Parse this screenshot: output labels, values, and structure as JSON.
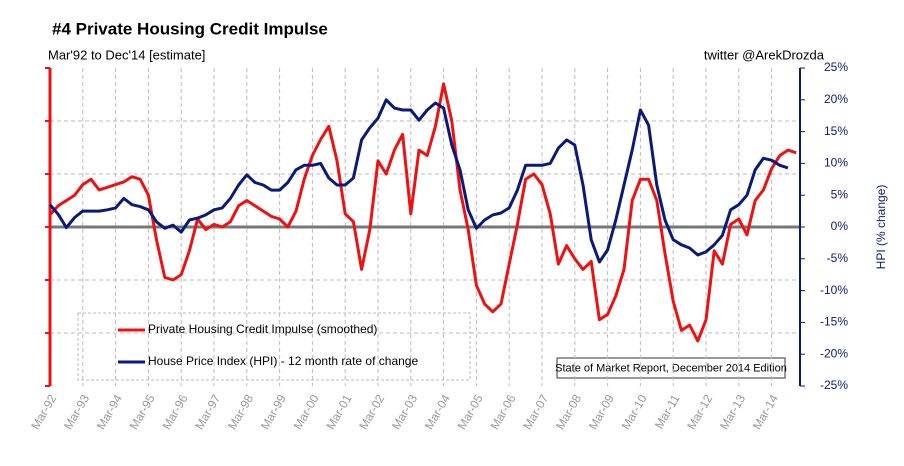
{
  "chart_data": {
    "type": "line",
    "title": "#4 Private Housing Credit Impulse",
    "subtitle": "Mar'92 to Dec'14 [estimate]",
    "source": "twitter @ArekDrozda",
    "annotation": "State of Market Report, December 2014 Edition",
    "y2_label": "HPI (% change)",
    "categories": [
      "Mar-92",
      null,
      null,
      null,
      "Mar-93",
      null,
      null,
      null,
      "Mar-94",
      null,
      null,
      null,
      "Mar-95",
      null,
      null,
      null,
      "Mar-96",
      null,
      null,
      null,
      "Mar-97",
      null,
      null,
      null,
      "Mar-98",
      null,
      null,
      null,
      "Mar-99",
      null,
      null,
      null,
      "Mar-00",
      null,
      null,
      null,
      "Mar-01",
      null,
      null,
      null,
      "Mar-02",
      null,
      null,
      null,
      "Mar-03",
      null,
      null,
      null,
      "Mar-04",
      null,
      null,
      null,
      "Mar-05",
      null,
      null,
      null,
      "Mar-06",
      null,
      null,
      null,
      "Mar-07",
      null,
      null,
      null,
      "Mar-08",
      null,
      null,
      null,
      "Mar-09",
      null,
      null,
      null,
      "Mar-10",
      null,
      null,
      null,
      "Mar-11",
      null,
      null,
      null,
      "Mar-12",
      null,
      null,
      null,
      "Mar-13",
      null,
      null,
      null,
      "Mar-14",
      null,
      null,
      null
    ],
    "series": [
      {
        "name": "Private Housing Credit Impulse (smoothed)",
        "color": "#ee1111",
        "axis": "y",
        "values": [
          0.23,
          0.4,
          0.5,
          0.6,
          0.8,
          0.9,
          0.7,
          0.75,
          0.8,
          0.85,
          0.95,
          0.9,
          0.6,
          -0.25,
          -0.95,
          -1.0,
          -0.9,
          -0.45,
          0.15,
          -0.05,
          0.05,
          0,
          0.1,
          0.4,
          0.5,
          0.4,
          0.3,
          0.2,
          0.15,
          0,
          0.3,
          0.9,
          1.35,
          1.65,
          1.9,
          1.25,
          0.25,
          0.1,
          -0.8,
          -0.05,
          1.25,
          1.0,
          1.45,
          1.75,
          0.25,
          1.45,
          1.35,
          1.9,
          2.7,
          2.0,
          0.7,
          -0.05,
          -1.1,
          -1.45,
          -1.6,
          -1.45,
          -0.7,
          0.05,
          0.9,
          1.0,
          0.8,
          0.25,
          -0.7,
          -0.35,
          -0.6,
          -0.8,
          -0.65,
          -1.75,
          -1.65,
          -1.3,
          -0.8,
          0.5,
          0.9,
          0.9,
          0.5,
          -0.5,
          -1.4,
          -1.95,
          -1.85,
          -2.15,
          -1.75,
          -0.45,
          -0.7,
          0.05,
          0.15,
          -0.15,
          0.5,
          0.7,
          1.1,
          1.35,
          1.45,
          1.4
        ]
      },
      {
        "name": "House Price Index (HPI) - 12 month rate of change",
        "color": "#0a1a7a",
        "axis": "y2",
        "values": [
          3.5,
          2,
          -0.1,
          1.5,
          2.5,
          2.5,
          2.5,
          2.7,
          3,
          4.5,
          3.5,
          3.2,
          2.7,
          0.8,
          -0.2,
          0.3,
          -0.8,
          1.1,
          1.4,
          1.9,
          2.7,
          3,
          4.5,
          6.6,
          8.2,
          7,
          6.6,
          5.8,
          5.8,
          7,
          9,
          9.7,
          9.7,
          10,
          7.7,
          6.6,
          6.6,
          7.7,
          13.7,
          15.6,
          17.1,
          20,
          18.7,
          18.4,
          18.4,
          16.8,
          18.4,
          19.5,
          18.7,
          12.9,
          9,
          2.7,
          -0.2,
          1.1,
          1.9,
          2.2,
          3,
          5.8,
          9.7,
          9.7,
          9.7,
          10,
          12.4,
          13.7,
          12.9,
          6.6,
          -2,
          -5.5,
          -3.6,
          1.1,
          6.6,
          12.1,
          18.4,
          16,
          6.6,
          1.1,
          -2,
          -2.8,
          -3.3,
          -4.4,
          -3.9,
          -2.8,
          -1.3,
          2.7,
          3.5,
          5,
          9,
          10.8,
          10.5,
          9.7,
          9.3,
          null
        ]
      }
    ],
    "ylim": [
      -3,
      3
    ],
    "yticks": [
      -3,
      -2,
      -1,
      0,
      1,
      2,
      3
    ],
    "y2lim": [
      -25,
      25
    ],
    "y2ticks": [
      {
        "value": 25,
        "label": "25%"
      },
      {
        "value": 20,
        "label": "20%"
      },
      {
        "value": 15,
        "label": "15%"
      },
      {
        "value": 10,
        "label": "10%"
      },
      {
        "value": 5,
        "label": "5%"
      },
      {
        "value": 0,
        "label": "0%"
      },
      {
        "value": -5,
        "label": "-5%"
      },
      {
        "value": -10,
        "label": "-10%"
      },
      {
        "value": -15,
        "label": "-15%"
      },
      {
        "value": -20,
        "label": "-20%"
      },
      {
        "value": -25,
        "label": "-25%"
      }
    ],
    "grid": true
  }
}
